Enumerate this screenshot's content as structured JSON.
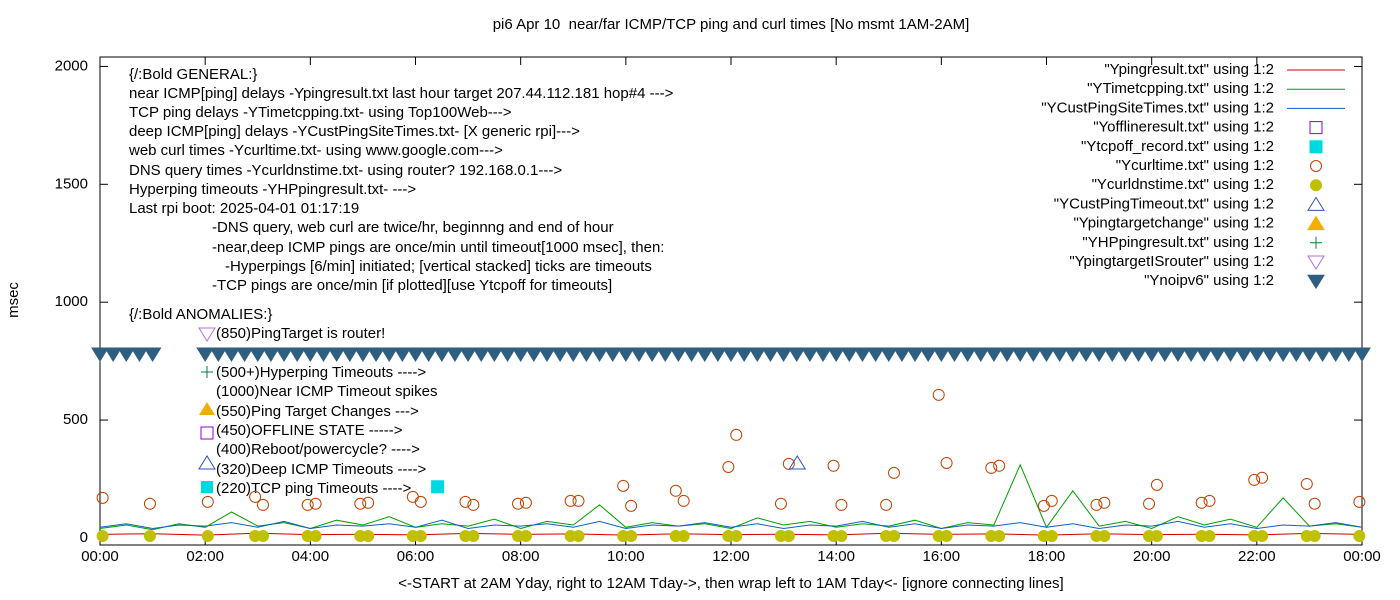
{
  "chart_data": {
    "type": "scatter",
    "title": "pi6 Apr 10  near/far ICMP/TCP ping and curl times [No msmt 1AM-2AM]",
    "y_label": "msec",
    "x_label": "<-START at 2AM Yday, right to 12AM Tday->, then wrap left to 1AM Tday<- [ignore connecting lines]",
    "xlim": [
      0,
      24
    ],
    "ylim": [
      -30,
      2040
    ],
    "xticks": [
      {
        "value": 0,
        "label": "00:00"
      },
      {
        "value": 2,
        "label": "02:00"
      },
      {
        "value": 4,
        "label": "04:00"
      },
      {
        "value": 6,
        "label": "06:00"
      },
      {
        "value": 8,
        "label": "08:00"
      },
      {
        "value": 10,
        "label": "10:00"
      },
      {
        "value": 12,
        "label": "12:00"
      },
      {
        "value": 14,
        "label": "14:00"
      },
      {
        "value": 16,
        "label": "16:00"
      },
      {
        "value": 18,
        "label": "18:00"
      },
      {
        "value": 20,
        "label": "20:00"
      },
      {
        "value": 22,
        "label": "22:00"
      },
      {
        "value": 24,
        "label": "00:00"
      }
    ],
    "yticks": [
      0,
      500,
      1000,
      1500,
      2000
    ],
    "legend": "top-right",
    "annotations": [
      "{/:Bold GENERAL:}",
      "near ICMP[ping] delays -Ypingresult.txt last hour target 207.44.112.181 hop#4 --->",
      "TCP ping delays -YTimetcpping.txt- using Top100Web--->",
      "deep ICMP[ping] delays -YCustPingSiteTimes.txt- [X generic rpi]--->",
      "web curl times -Ycurltime.txt- using www.google.com--->",
      "DNS query times -Ycurldnstime.txt- using router? 192.168.0.1--->",
      "Hyperping timeouts -YHPpingresult.txt- --->",
      "Last rpi boot: 2025-04-01 01:17:19",
      "-DNS query, web curl are twice/hr, beginnng and end of hour",
      "-near,deep ICMP pings are once/min until timeout[1000 msec], then:",
      "-Hyperpings [6/min] initiated; [vertical stacked] ticks are timeouts",
      "-TCP pings are once/min [if plotted][use Ytcpoff for timeouts]",
      "{/:Bold ANOMALIES:}",
      "(850)PingTarget is router!",
      "(500+)Hyperping Timeouts ---->",
      "(1000)Near ICMP Timeout spikes",
      "(550)Ping Target Changes --->",
      "(450)OFFLINE STATE ----->",
      "(400)Reboot/powercycle? ---->",
      "(320)Deep ICMP Timeouts ---->",
      "(220)TCP ping Timeouts ---->"
    ],
    "series": [
      {
        "name": "\"Ypingresult.txt\" using 1:2",
        "marker": "line",
        "color": "#d00000",
        "x": [
          0,
          1,
          2,
          3,
          4,
          5,
          6,
          7,
          8,
          9,
          10,
          11,
          12,
          13,
          14,
          15,
          16,
          17,
          18,
          19,
          20,
          21,
          22,
          23,
          24
        ],
        "values": [
          15,
          18,
          12,
          20,
          14,
          16,
          13,
          19,
          15,
          17,
          12,
          18,
          14,
          16,
          13,
          20,
          15,
          17,
          12,
          18,
          14,
          16,
          13,
          19,
          15
        ]
      },
      {
        "name": "\"YTimetcpping.txt\" using 1:2",
        "marker": "line",
        "color": "#00a000",
        "x": [
          0,
          0.5,
          1,
          1.5,
          2,
          2.5,
          3,
          3.5,
          4,
          4.5,
          5,
          5.5,
          6,
          6.5,
          7,
          7.5,
          8,
          8.5,
          9,
          9.5,
          10,
          10.5,
          11,
          11.5,
          12,
          12.5,
          13,
          13.5,
          14,
          14.5,
          15,
          15.5,
          16,
          16.5,
          17,
          17.5,
          18,
          18.5,
          19,
          19.5,
          20,
          20.5,
          21,
          21.5,
          22,
          22.5,
          23,
          23.5,
          24
        ],
        "values": [
          40,
          55,
          35,
          60,
          45,
          110,
          50,
          65,
          40,
          75,
          55,
          90,
          45,
          60,
          50,
          80,
          40,
          70,
          55,
          140,
          45,
          65,
          50,
          60,
          40,
          85,
          55,
          70,
          45,
          60,
          50,
          75,
          40,
          65,
          55,
          310,
          45,
          200,
          50,
          70,
          40,
          90,
          55,
          80,
          45,
          170,
          50,
          60,
          45
        ]
      },
      {
        "name": "\"YCustPingSiteTimes.txt\" using 1:2",
        "marker": "line",
        "color": "#1060c0",
        "x": [
          0,
          0.5,
          1,
          1.5,
          2,
          2.5,
          3,
          3.5,
          4,
          4.5,
          5,
          5.5,
          6,
          6.5,
          7,
          7.5,
          8,
          8.5,
          9,
          9.5,
          10,
          10.5,
          11,
          11.5,
          12,
          12.5,
          13,
          13.5,
          14,
          14.5,
          15,
          15.5,
          16,
          16.5,
          17,
          17.5,
          18,
          18.5,
          19,
          19.5,
          20,
          20.5,
          21,
          21.5,
          22,
          22.5,
          23,
          23.5,
          24
        ],
        "values": [
          45,
          60,
          40,
          55,
          50,
          65,
          45,
          70,
          40,
          55,
          50,
          60,
          45,
          75,
          40,
          55,
          50,
          60,
          45,
          70,
          40,
          55,
          50,
          65,
          45,
          60,
          40,
          55,
          50,
          70,
          45,
          60,
          40,
          55,
          50,
          65,
          45,
          60,
          40,
          55,
          50,
          70,
          45,
          60,
          40,
          55,
          50,
          65,
          45
        ]
      },
      {
        "name": "\"Yofflineresult.txt\" using 1:2",
        "marker": "square-open",
        "color": "#9400d3",
        "x": [],
        "values": []
      },
      {
        "name": "\"Ytcpoff_record.txt\" using 1:2",
        "marker": "square",
        "color": "#00d8e0",
        "x": [
          6.42
        ],
        "values": [
          217
        ]
      },
      {
        "name": "\"Ycurltime.txt\" using 1:2",
        "marker": "circle-open",
        "color": "#c04000",
        "x": [
          0.05,
          0.95,
          2.05,
          2.95,
          3.1,
          3.95,
          4.1,
          4.95,
          5.1,
          5.95,
          6.1,
          6.95,
          7.1,
          7.95,
          8.1,
          8.95,
          9.1,
          9.95,
          10.1,
          10.95,
          11.1,
          11.95,
          12.1,
          12.95,
          13.1,
          13.95,
          14.1,
          14.95,
          15.1,
          15.95,
          16.1,
          16.95,
          17.1,
          17.95,
          18.1,
          18.95,
          19.1,
          19.95,
          20.1,
          20.95,
          21.1,
          21.95,
          22.1,
          22.95,
          23.1,
          23.95
        ],
        "values": [
          170,
          145,
          153,
          174,
          140,
          140,
          145,
          145,
          149,
          174,
          153,
          153,
          140,
          145,
          149,
          157,
          157,
          221,
          136,
          200,
          157,
          301,
          437,
          145,
          314,
          306,
          140,
          140,
          276,
          607,
          318,
          297,
          306,
          136,
          157,
          140,
          149,
          145,
          225,
          149,
          157,
          246,
          255,
          229,
          145,
          153
        ]
      },
      {
        "name": "\"Ycurldnstime.txt\" using 1:2",
        "marker": "circle",
        "color": "#c0c000",
        "x": [
          0.05,
          0.95,
          2.05,
          2.95,
          3.1,
          3.95,
          4.1,
          4.95,
          5.1,
          5.95,
          6.1,
          6.95,
          7.1,
          7.95,
          8.1,
          8.95,
          9.1,
          9.95,
          10.1,
          10.95,
          11.1,
          11.95,
          12.1,
          12.95,
          13.1,
          13.95,
          14.1,
          14.95,
          15.1,
          15.95,
          16.1,
          16.95,
          17.1,
          17.95,
          18.1,
          18.95,
          19.1,
          19.95,
          20.1,
          20.95,
          21.1,
          21.95,
          22.1,
          22.95,
          23.1,
          23.95
        ],
        "values": [
          8,
          8,
          8,
          8,
          8,
          8,
          8,
          8,
          8,
          8,
          8,
          8,
          8,
          8,
          8,
          8,
          8,
          8,
          8,
          8,
          8,
          8,
          8,
          8,
          8,
          8,
          8,
          8,
          8,
          8,
          8,
          8,
          8,
          8,
          8,
          8,
          8,
          8,
          8,
          8,
          8,
          8,
          8,
          8,
          8,
          8
        ]
      },
      {
        "name": "\"YCustPingTimeout.txt\" using 1:2",
        "marker": "triangle-open",
        "color": "#3050c0",
        "x": [
          13.26
        ],
        "values": [
          318
        ]
      },
      {
        "name": "\"Ypingtargetchange\" using 1:2",
        "marker": "triangle",
        "color": "#f0b000",
        "x": [],
        "values": []
      },
      {
        "name": "\"YHPpingresult.txt\" using 1:2",
        "marker": "plus",
        "color": "#008040",
        "x": [],
        "values": []
      },
      {
        "name": "\"YpingtargetISrouter\" using 1:2",
        "marker": "triangle-down-open",
        "color": "#b070f0",
        "x": [],
        "values": []
      },
      {
        "name": "\"Ynoipv6\" using 1:2",
        "marker": "triangle-down",
        "color": "#2f5f80",
        "x": [
          0,
          0.25,
          0.5,
          0.75,
          1,
          2,
          2.25,
          2.5,
          2.75,
          3,
          3.25,
          3.5,
          3.75,
          4,
          4.25,
          4.5,
          4.75,
          5,
          5.25,
          5.5,
          5.75,
          6,
          6.25,
          6.5,
          6.75,
          7,
          7.25,
          7.5,
          7.75,
          8,
          8.25,
          8.5,
          8.75,
          9,
          9.25,
          9.5,
          9.75,
          10,
          10.25,
          10.5,
          10.75,
          11,
          11.25,
          11.5,
          11.75,
          12,
          12.25,
          12.5,
          12.75,
          13,
          13.25,
          13.5,
          13.75,
          14,
          14.25,
          14.5,
          14.75,
          15,
          15.25,
          15.5,
          15.75,
          16,
          16.25,
          16.5,
          16.75,
          17,
          17.25,
          17.5,
          17.75,
          18,
          18.25,
          18.5,
          18.75,
          19,
          19.25,
          19.5,
          19.75,
          20,
          20.25,
          20.5,
          20.75,
          21,
          21.25,
          21.5,
          21.75,
          22,
          22.25,
          22.5,
          22.75,
          23,
          23.25,
          23.5,
          23.75,
          24
        ],
        "values": [
          780,
          780,
          780,
          780,
          780,
          780,
          780,
          780,
          780,
          780,
          780,
          780,
          780,
          780,
          780,
          780,
          780,
          780,
          780,
          780,
          780,
          780,
          780,
          780,
          780,
          780,
          780,
          780,
          780,
          780,
          780,
          780,
          780,
          780,
          780,
          780,
          780,
          780,
          780,
          780,
          780,
          780,
          780,
          780,
          780,
          780,
          780,
          780,
          780,
          780,
          780,
          780,
          780,
          780,
          780,
          780,
          780,
          780,
          780,
          780,
          780,
          780,
          780,
          780,
          780,
          780,
          780,
          780,
          780,
          780,
          780,
          780,
          780,
          780,
          780,
          780,
          780,
          780,
          780,
          780,
          780,
          780,
          780,
          780,
          780,
          780,
          780,
          780,
          780,
          780,
          780,
          780,
          780,
          780
        ]
      }
    ]
  }
}
